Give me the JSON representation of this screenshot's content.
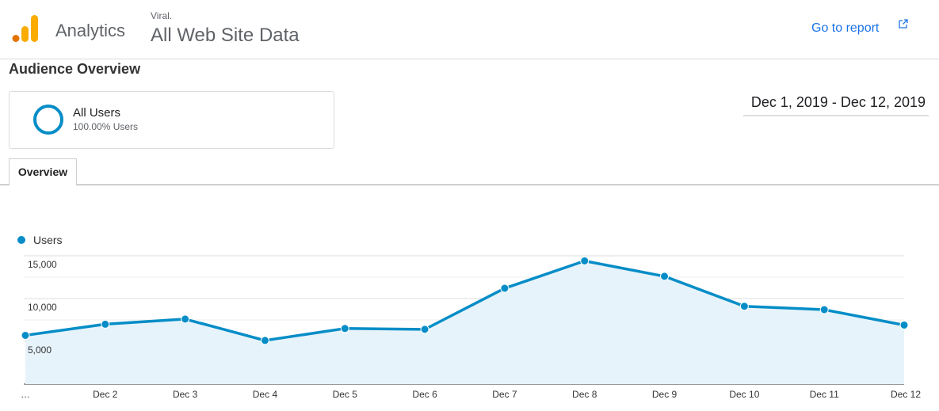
{
  "header": {
    "product_name": "Analytics",
    "account_name": "Viral.",
    "property_name": "All Web Site Data",
    "go_to_report_label": "Go to report",
    "logo_icon": "analytics-bars-icon",
    "external_icon": "open-in-new-icon",
    "logo_colors": [
      "#f9ab00",
      "#e37400"
    ],
    "link_color": "#1a73e8"
  },
  "page": {
    "title": "Audience Overview"
  },
  "segment": {
    "name": "All Users",
    "percentage": "100.00% Users",
    "ring_color": "#058dc7"
  },
  "date_range": {
    "label": "Dec 1, 2019 - Dec 12, 2019"
  },
  "tabs": [
    {
      "label": "Overview",
      "active": true
    }
  ],
  "chart_data": {
    "type": "area",
    "legend": {
      "position": "top-left",
      "entries": [
        "Users"
      ]
    },
    "color": "#058dc7",
    "fill_color": "#e7f3fa",
    "grid": true,
    "ylim": [
      0,
      15000
    ],
    "yticks": [
      5000,
      10000,
      15000
    ],
    "ytick_labels": [
      "5,000",
      "10,000",
      "15,000"
    ],
    "categories": [
      "…",
      "Dec 2",
      "Dec 3",
      "Dec 4",
      "Dec 5",
      "Dec 6",
      "Dec 7",
      "Dec 8",
      "Dec 9",
      "Dec 10",
      "Dec 11",
      "Dec 12"
    ],
    "series": [
      {
        "name": "Users",
        "values": [
          5700,
          7000,
          7600,
          5100,
          6500,
          6400,
          11200,
          14400,
          12600,
          9100,
          8700,
          6900
        ]
      }
    ]
  }
}
